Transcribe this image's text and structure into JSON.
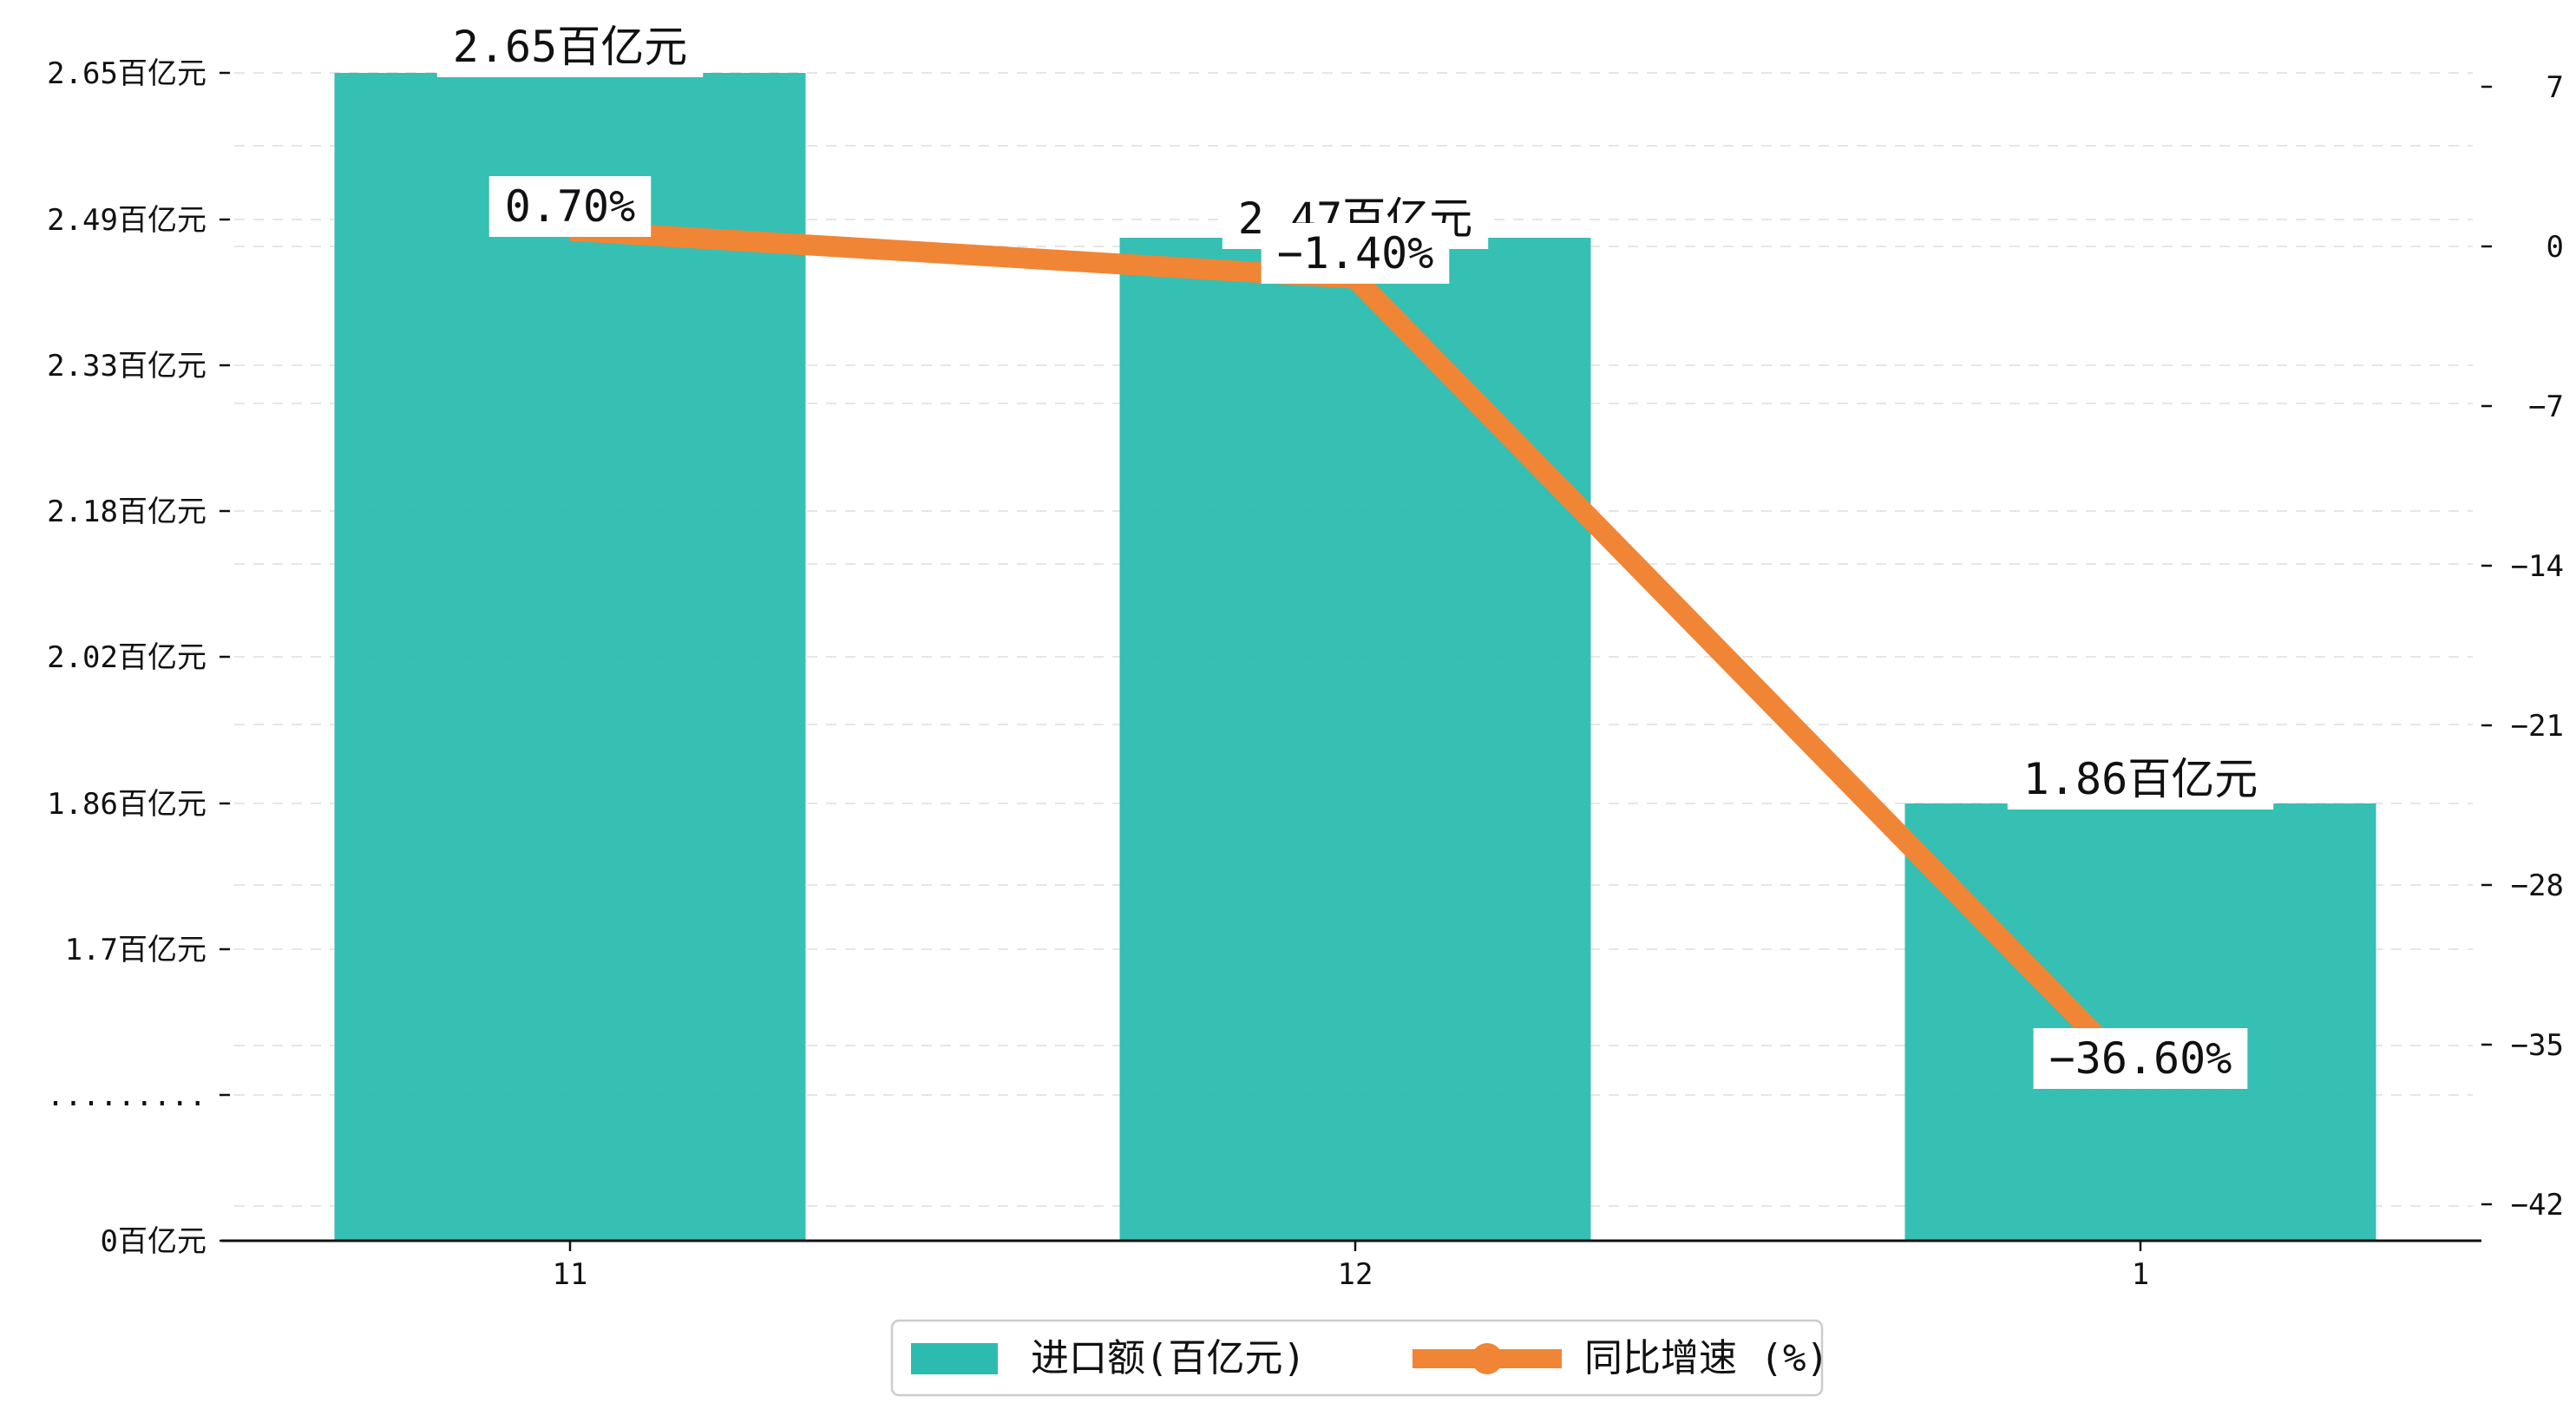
{
  "chart_data": {
    "type": "bar",
    "categories": [
      "11",
      "12",
      "1"
    ],
    "series": [
      {
        "name": "进口额(百亿元)",
        "kind": "bar",
        "axis": "left",
        "color": "#2bbcaf",
        "values": [
          2.65,
          2.47,
          1.86
        ],
        "labels": [
          "2.65百亿元",
          "2.47百亿元",
          "1.86百亿元"
        ]
      },
      {
        "name": "同比增速 (%)",
        "kind": "line",
        "axis": "right",
        "color": "#f08536",
        "values": [
          0.7,
          -1.4,
          -36.6
        ],
        "labels": [
          "0.70%",
          "-1.40%",
          "-36.60%"
        ]
      }
    ],
    "left_axis": {
      "note": "broken axis between 0 and 1.7",
      "ticks": [
        {
          "value": 0,
          "label": "0百亿元"
        },
        {
          "value": null,
          "label": "........."
        },
        {
          "value": 1.7,
          "label": "1.7百亿元"
        },
        {
          "value": 1.86,
          "label": "1.86百亿元"
        },
        {
          "value": 2.02,
          "label": "2.02百亿元"
        },
        {
          "value": 2.18,
          "label": "2.18百亿元"
        },
        {
          "value": 2.33,
          "label": "2.33百亿元"
        },
        {
          "value": 2.49,
          "label": "2.49百亿元"
        },
        {
          "value": 2.65,
          "label": "2.65百亿元"
        }
      ]
    },
    "right_axis": {
      "ylim": [
        -43.4,
        8.6
      ],
      "ticks": [
        7,
        0,
        -7,
        -14,
        -21,
        -28,
        -35,
        -42
      ]
    },
    "grid": "horizontal dashed",
    "legend_position": "bottom-center"
  }
}
